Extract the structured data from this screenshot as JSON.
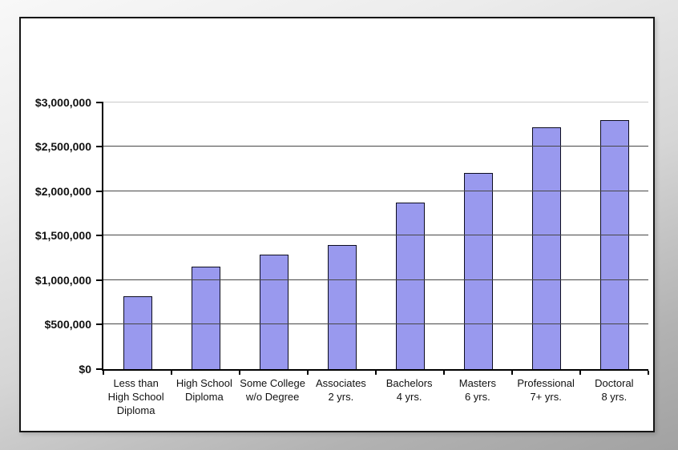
{
  "chart_data": {
    "type": "bar",
    "title": "",
    "xlabel": "",
    "ylabel": "",
    "categories": [
      "Less than High School Diploma",
      "High School Diploma",
      "Some College w/o Degree",
      "Associates 2 yrs.",
      "Bachelors 4 yrs.",
      "Masters 6 yrs.",
      "Professional 7+ yrs.",
      "Doctoral 8 yrs."
    ],
    "category_label_lines": [
      [
        "Less than",
        "High School",
        "Diploma"
      ],
      [
        "High School",
        "Diploma"
      ],
      [
        "Some College",
        "w/o Degree"
      ],
      [
        "Associates",
        "2 yrs."
      ],
      [
        "Bachelors",
        "4 yrs."
      ],
      [
        "Masters",
        "6 yrs."
      ],
      [
        "Professional",
        "7+ yrs."
      ],
      [
        "Doctoral",
        "8 yrs."
      ]
    ],
    "values": [
      820000,
      1150000,
      1290000,
      1400000,
      1870000,
      2210000,
      2720000,
      2800000
    ],
    "ylim": [
      0,
      3000000
    ],
    "ytick_interval": 500000,
    "ytick_labels": [
      "$0",
      "$500,000",
      "$1,000,000",
      "$1,500,000",
      "$2,000,000",
      "$2,500,000",
      "$3,000,000"
    ],
    "grid": true,
    "legend_position": "none",
    "colors": {
      "bar_fill": "#9999ee",
      "bar_border": "#0d0d20",
      "gridline": "#474747",
      "top_gridline": "#c9c9c9",
      "axis": "#000000",
      "panel_background": "#ffffff",
      "panel_border": "#161616"
    }
  }
}
